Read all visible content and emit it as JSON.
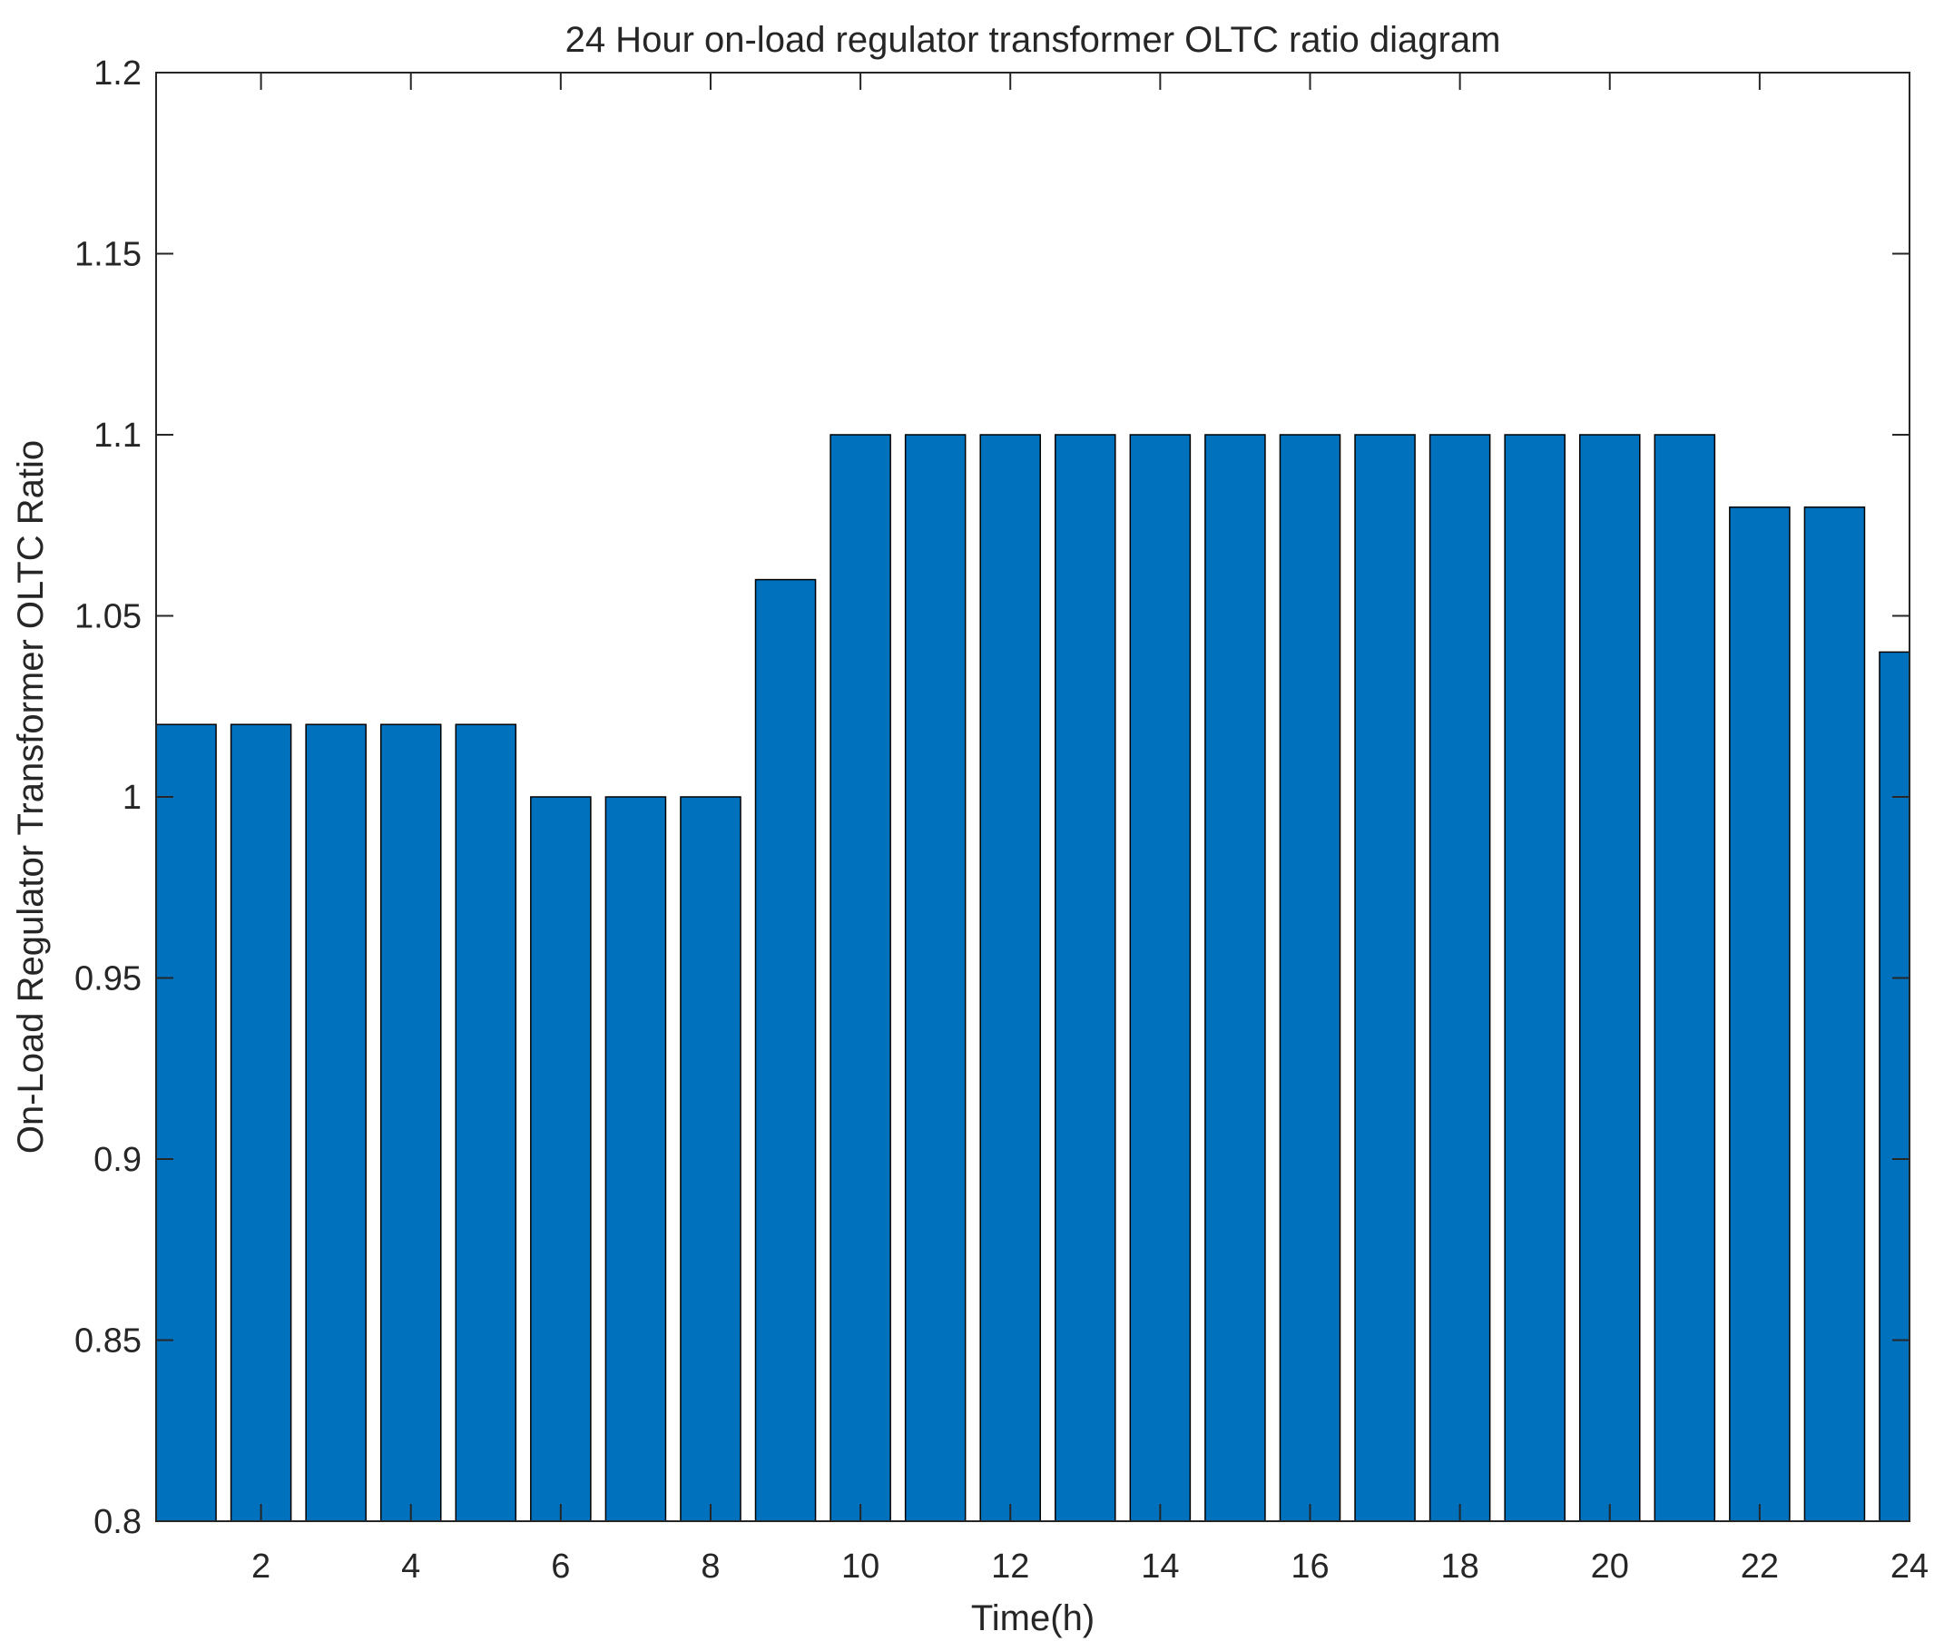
{
  "chart_data": {
    "type": "bar",
    "title": "24 Hour on-load regulator transformer OLTC ratio diagram",
    "xlabel": "Time(h)",
    "ylabel": "On-Load Regulator Transformer OLTC Ratio",
    "categories": [
      1,
      2,
      3,
      4,
      5,
      6,
      7,
      8,
      9,
      10,
      11,
      12,
      13,
      14,
      15,
      16,
      17,
      18,
      19,
      20,
      21,
      22,
      23,
      24
    ],
    "values": [
      1.02,
      1.02,
      1.02,
      1.02,
      1.02,
      1.0,
      1.0,
      1.0,
      1.06,
      1.1,
      1.1,
      1.1,
      1.1,
      1.1,
      1.1,
      1.1,
      1.1,
      1.1,
      1.1,
      1.1,
      1.1,
      1.08,
      1.08,
      1.04
    ],
    "xlim": [
      0.6,
      24.0
    ],
    "ylim": [
      0.8,
      1.2
    ],
    "x_ticks": [
      2,
      4,
      6,
      8,
      10,
      12,
      14,
      16,
      18,
      20,
      22,
      24
    ],
    "x_tick_labels": [
      "2",
      "4",
      "6",
      "8",
      "10",
      "12",
      "14",
      "16",
      "18",
      "20",
      "22",
      "24"
    ],
    "y_ticks": [
      0.8,
      0.85,
      0.9,
      0.95,
      1.0,
      1.05,
      1.1,
      1.15,
      1.2
    ],
    "y_tick_labels": [
      "0.8",
      "0.85",
      "0.9",
      "0.95",
      "1",
      "1.05",
      "1.1",
      "1.15",
      "1.2"
    ],
    "bar_color": "#0072BD",
    "grid": false,
    "legend": "none"
  }
}
